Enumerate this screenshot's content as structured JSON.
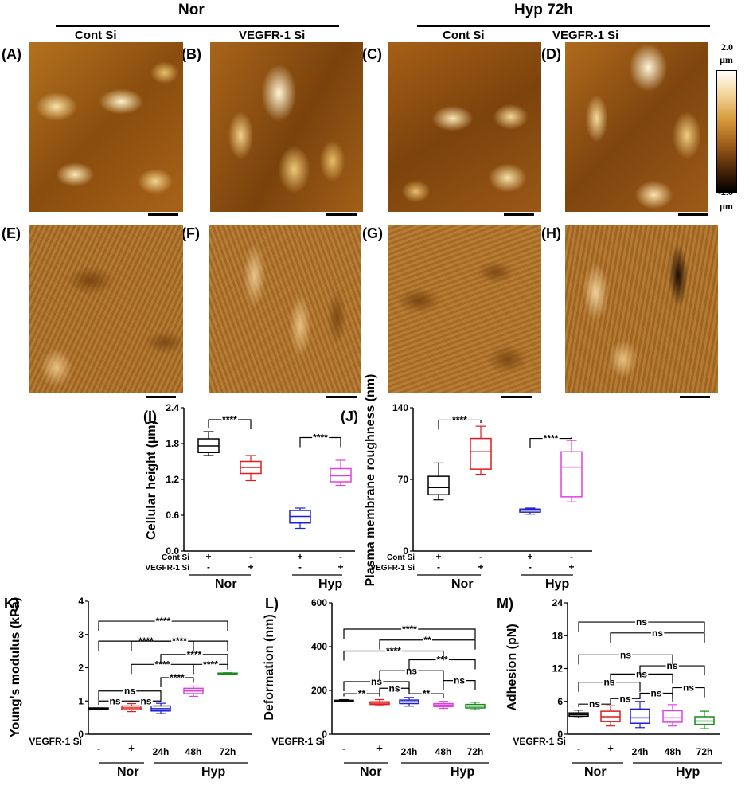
{
  "header": {
    "nor": "Nor",
    "hyp72": "Hyp 72h"
  },
  "sub_headers": [
    "Cont Si",
    "VEGFR-1 Si",
    "Cont Si",
    "VEGFR-1 Si"
  ],
  "panel_labels": [
    "(A)",
    "(B)",
    "(C)",
    "(D)",
    "(E)",
    "(F)",
    "(G)",
    "(H)",
    "(I)",
    "(J)",
    "K)",
    "L)",
    "M)"
  ],
  "colorbar": {
    "top_value": "2.0",
    "top_unit": "µm",
    "bottom_value": "-2.0",
    "bottom_unit": "µm"
  },
  "colors": {
    "black": "#000000",
    "red": "#e41a1c",
    "blue": "#1f1fd6",
    "magenta": "#e040e0",
    "green": "#1a8a1a"
  },
  "chart_data": [
    {
      "id": "I",
      "type": "box",
      "ylabel": "Cellular height (µm)",
      "ylim": [
        0,
        2.4
      ],
      "yticks": [
        "0.0",
        "0.6",
        "1.2",
        "1.8",
        "2.4"
      ],
      "rows": [
        {
          "label": "Cont Si",
          "marks": [
            "+",
            "-",
            "+",
            "-"
          ]
        },
        {
          "label": "VEGFR-1 Si",
          "marks": [
            "-",
            "+",
            "-",
            "+"
          ]
        }
      ],
      "groups": [
        "Nor",
        "Hyp"
      ],
      "boxes": [
        {
          "color": "#000000",
          "min": 1.6,
          "q1": 1.65,
          "median": 1.76,
          "q3": 1.88,
          "max": 2.0
        },
        {
          "color": "#e41a1c",
          "min": 1.18,
          "q1": 1.3,
          "median": 1.4,
          "q3": 1.5,
          "max": 1.6
        },
        {
          "color": "#1f1fd6",
          "min": 0.38,
          "q1": 0.47,
          "median": 0.58,
          "q3": 0.68,
          "max": 0.72
        },
        {
          "color": "#e040e0",
          "min": 1.1,
          "q1": 1.16,
          "median": 1.26,
          "q3": 1.38,
          "max": 1.52
        }
      ],
      "brackets": [
        {
          "from": 0,
          "to": 1,
          "level": 2.2,
          "label": "****"
        },
        {
          "from": 2,
          "to": 3,
          "level": 1.9,
          "label": "****"
        }
      ]
    },
    {
      "id": "J",
      "type": "box",
      "ylabel": "Plasma membrane roughness (nm)",
      "ylim": [
        0,
        140
      ],
      "yticks": [
        "0",
        "70",
        "140"
      ],
      "rows": [
        {
          "label": "Cont Si",
          "marks": [
            "+",
            "-",
            "+",
            "-"
          ]
        },
        {
          "label": "VEGFR-1 Si",
          "marks": [
            "-",
            "+",
            "-",
            "+"
          ]
        }
      ],
      "groups": [
        "Nor",
        "Hyp"
      ],
      "boxes": [
        {
          "color": "#000000",
          "min": 50,
          "q1": 55,
          "median": 62,
          "q3": 73,
          "max": 86
        },
        {
          "color": "#e41a1c",
          "min": 75,
          "q1": 80,
          "median": 97,
          "q3": 110,
          "max": 122
        },
        {
          "color": "#1f1fd6",
          "min": 36,
          "q1": 38,
          "median": 40,
          "q3": 41,
          "max": 42
        },
        {
          "color": "#e040e0",
          "min": 48,
          "q1": 53,
          "median": 82,
          "q3": 97,
          "max": 108
        }
      ],
      "brackets": [
        {
          "from": 0,
          "to": 1,
          "level": 128,
          "label": "****"
        },
        {
          "from": 2,
          "to": 3,
          "level": 110,
          "label": "****"
        }
      ]
    },
    {
      "id": "K",
      "type": "box",
      "ylabel": "Young's modulus (kPa)",
      "ylim": [
        0,
        4
      ],
      "yticks": [
        "0",
        "1",
        "2",
        "3",
        "4"
      ],
      "row_label": "VEGFR-1 Si",
      "marks": [
        "-",
        "+",
        "",
        "",
        ""
      ],
      "times": [
        "",
        "",
        "24h",
        "48h",
        "72h"
      ],
      "groups": [
        "Nor",
        "Hyp"
      ],
      "boxes": [
        {
          "color": "#000000",
          "min": 0.78,
          "q1": 0.78,
          "median": 0.78,
          "q3": 0.79,
          "max": 0.79
        },
        {
          "color": "#e41a1c",
          "min": 0.68,
          "q1": 0.74,
          "median": 0.79,
          "q3": 0.85,
          "max": 0.92
        },
        {
          "color": "#1f1fd6",
          "min": 0.62,
          "q1": 0.7,
          "median": 0.77,
          "q3": 0.85,
          "max": 0.93
        },
        {
          "color": "#e040e0",
          "min": 1.14,
          "q1": 1.22,
          "median": 1.3,
          "q3": 1.38,
          "max": 1.45
        },
        {
          "color": "#1a8a1a",
          "min": 1.8,
          "q1": 1.81,
          "median": 1.82,
          "q3": 1.84,
          "max": 1.85
        }
      ],
      "brackets": [
        {
          "from": 0,
          "to": 1,
          "level": 1.0,
          "label": "ns"
        },
        {
          "from": 1,
          "to": 2,
          "level": 1.0,
          "label": "ns"
        },
        {
          "from": 0,
          "to": 2,
          "level": 1.3,
          "label": "ns"
        },
        {
          "from": 2,
          "to": 3,
          "level": 1.7,
          "label": "****"
        },
        {
          "from": 1,
          "to": 3,
          "level": 2.1,
          "label": "****"
        },
        {
          "from": 3,
          "to": 4,
          "level": 2.1,
          "label": "****"
        },
        {
          "from": 2,
          "to": 4,
          "level": 2.4,
          "label": "****"
        },
        {
          "from": 0,
          "to": 3,
          "level": 2.8,
          "label": "****"
        },
        {
          "from": 1,
          "to": 4,
          "level": 2.8,
          "label": "****"
        },
        {
          "from": 0,
          "to": 4,
          "level": 3.4,
          "label": "****"
        }
      ]
    },
    {
      "id": "L",
      "type": "box",
      "ylabel": "Deformation (nm)",
      "ylim": [
        0,
        600
      ],
      "yticks": [
        "0",
        "200",
        "400",
        "600"
      ],
      "row_label": "VEGFR-1 Si",
      "marks": [
        "-",
        "+",
        "",
        "",
        ""
      ],
      "times": [
        "",
        "",
        "24h",
        "48h",
        "72h"
      ],
      "groups": [
        "Nor",
        "Hyp"
      ],
      "boxes": [
        {
          "color": "#000000",
          "min": 148,
          "q1": 150,
          "median": 152,
          "q3": 155,
          "max": 158
        },
        {
          "color": "#e41a1c",
          "min": 130,
          "q1": 136,
          "median": 142,
          "q3": 148,
          "max": 158
        },
        {
          "color": "#1f1fd6",
          "min": 128,
          "q1": 140,
          "median": 148,
          "q3": 156,
          "max": 168
        },
        {
          "color": "#e040e0",
          "min": 118,
          "q1": 126,
          "median": 133,
          "q3": 140,
          "max": 150
        },
        {
          "color": "#1a8a1a",
          "min": 112,
          "q1": 120,
          "median": 128,
          "q3": 136,
          "max": 146
        }
      ],
      "brackets": [
        {
          "from": 0,
          "to": 1,
          "level": 185,
          "label": "**"
        },
        {
          "from": 1,
          "to": 2,
          "level": 210,
          "label": "ns"
        },
        {
          "from": 2,
          "to": 3,
          "level": 185,
          "label": "**"
        },
        {
          "from": 3,
          "to": 4,
          "level": 245,
          "label": "ns"
        },
        {
          "from": 0,
          "to": 2,
          "level": 240,
          "label": "ns"
        },
        {
          "from": 1,
          "to": 3,
          "level": 290,
          "label": "ns"
        },
        {
          "from": 2,
          "to": 4,
          "level": 340,
          "label": "***"
        },
        {
          "from": 0,
          "to": 3,
          "level": 380,
          "label": "****"
        },
        {
          "from": 1,
          "to": 4,
          "level": 430,
          "label": "**"
        },
        {
          "from": 0,
          "to": 4,
          "level": 480,
          "label": "****"
        }
      ]
    },
    {
      "id": "M",
      "type": "box",
      "ylabel": "Adhesion (pN)",
      "ylim": [
        0,
        24
      ],
      "yticks": [
        "0",
        "6",
        "12",
        "18",
        "24"
      ],
      "row_label": "VEGFR-1 Si",
      "marks": [
        "-",
        "+",
        "",
        "",
        ""
      ],
      "times": [
        "",
        "",
        "24h",
        "48h",
        "72h"
      ],
      "groups": [
        "Nor",
        "Hyp"
      ],
      "boxes": [
        {
          "color": "#000000",
          "min": 3.0,
          "q1": 3.3,
          "median": 3.6,
          "q3": 3.9,
          "max": 4.4
        },
        {
          "color": "#e41a1c",
          "min": 1.5,
          "q1": 2.3,
          "median": 3.2,
          "q3": 4.2,
          "max": 5.2
        },
        {
          "color": "#1f1fd6",
          "min": 1.2,
          "q1": 2.0,
          "median": 3.0,
          "q3": 4.6,
          "max": 6.0
        },
        {
          "color": "#e040e0",
          "min": 1.5,
          "q1": 2.2,
          "median": 3.0,
          "q3": 4.3,
          "max": 5.4
        },
        {
          "color": "#1a8a1a",
          "min": 1.0,
          "q1": 1.8,
          "median": 2.4,
          "q3": 3.2,
          "max": 4.2
        }
      ],
      "brackets": [
        {
          "from": 0,
          "to": 1,
          "level": 5.5,
          "label": "ns"
        },
        {
          "from": 1,
          "to": 2,
          "level": 6.5,
          "label": "ns"
        },
        {
          "from": 2,
          "to": 3,
          "level": 7.5,
          "label": "ns"
        },
        {
          "from": 3,
          "to": 4,
          "level": 8.5,
          "label": "ns"
        },
        {
          "from": 0,
          "to": 2,
          "level": 9.5,
          "label": "ns"
        },
        {
          "from": 1,
          "to": 3,
          "level": 11.0,
          "label": "ns"
        },
        {
          "from": 2,
          "to": 4,
          "level": 12.5,
          "label": "ns"
        },
        {
          "from": 0,
          "to": 3,
          "level": 14.5,
          "label": "ns"
        },
        {
          "from": 1,
          "to": 4,
          "level": 18.5,
          "label": "ns"
        },
        {
          "from": 0,
          "to": 4,
          "level": 20.5,
          "label": "ns"
        }
      ]
    }
  ]
}
